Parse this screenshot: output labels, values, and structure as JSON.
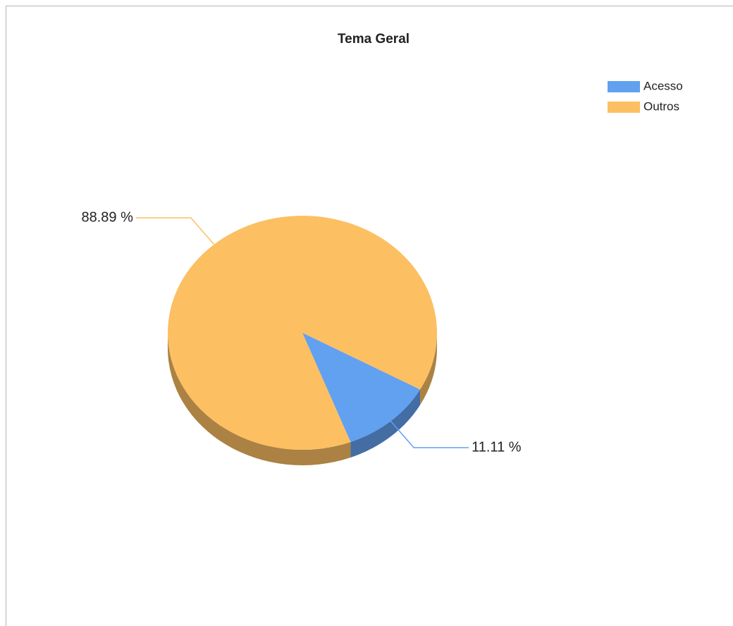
{
  "chart_data": {
    "type": "pie",
    "title": "Tema Geral",
    "categories": [
      "Acesso",
      "Outros"
    ],
    "values": [
      11.11,
      88.89
    ],
    "value_labels": [
      "11.11 %",
      "88.89 %"
    ],
    "colors": [
      "#62a0f0",
      "#fcbf62"
    ],
    "legend": "top-right"
  }
}
